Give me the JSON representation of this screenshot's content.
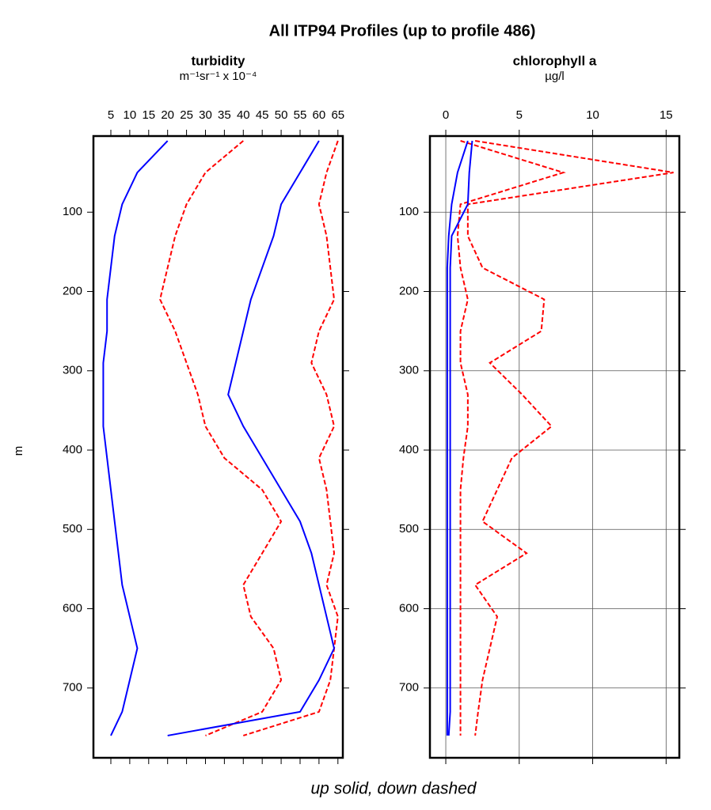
{
  "title": "All ITP94 Profiles (up to profile 486)",
  "ylabel": "m",
  "footer": "up solid, down dashed",
  "chart_data": [
    {
      "type": "line",
      "title": "turbidity",
      "subtitle": "m⁻¹sr⁻¹ x 10⁻⁴",
      "xlim": [
        0.4,
        66.3
      ],
      "xticks": [
        5,
        10,
        15,
        20,
        25,
        30,
        35,
        40,
        45,
        50,
        55,
        60,
        65
      ],
      "ylim": [
        788,
        4
      ],
      "yticks": [
        100,
        200,
        300,
        400,
        500,
        600,
        700
      ],
      "grid": false,
      "y": [
        10,
        50,
        90,
        130,
        170,
        210,
        250,
        290,
        330,
        370,
        410,
        450,
        490,
        530,
        570,
        610,
        650,
        690,
        730,
        760
      ],
      "series": [
        {
          "color": "#ff0000",
          "dash": true,
          "values": [
            65,
            62,
            60,
            62,
            63,
            64,
            60,
            58,
            62,
            64,
            60,
            62,
            63,
            64,
            62,
            65,
            64,
            63,
            60,
            40
          ]
        },
        {
          "color": "#ff0000",
          "dash": true,
          "values": [
            40,
            30,
            25,
            22,
            20,
            18,
            22,
            25,
            28,
            30,
            35,
            45,
            50,
            45,
            40,
            42,
            48,
            50,
            45,
            30
          ]
        },
        {
          "color": "#0000ff",
          "dash": false,
          "values": [
            60,
            55,
            50,
            48,
            45,
            42,
            40,
            38,
            36,
            40,
            45,
            50,
            55,
            58,
            60,
            62,
            64,
            60,
            55,
            20
          ]
        },
        {
          "color": "#0000ff",
          "dash": false,
          "values": [
            20,
            12,
            8,
            6,
            5,
            4,
            4,
            3,
            3,
            3,
            4,
            5,
            6,
            7,
            8,
            10,
            12,
            10,
            8,
            5
          ]
        }
      ]
    },
    {
      "type": "line",
      "title": "chlorophyll a",
      "subtitle": "µg/l",
      "xlim": [
        -1.08,
        15.9
      ],
      "xticks": [
        0,
        5,
        10,
        15
      ],
      "ylim": [
        788,
        4
      ],
      "yticks": [
        100,
        200,
        300,
        400,
        500,
        600,
        700
      ],
      "grid": true,
      "y": [
        10,
        50,
        90,
        130,
        170,
        210,
        250,
        290,
        330,
        370,
        410,
        450,
        490,
        530,
        570,
        610,
        650,
        690,
        730,
        760
      ],
      "series": [
        {
          "color": "#ff0000",
          "dash": true,
          "values": [
            2,
            15.5,
            1.5,
            1.5,
            2.5,
            6.7,
            6.5,
            3,
            5.2,
            7.2,
            4.5,
            3.5,
            2.5,
            5.5,
            2,
            3.5,
            3,
            2.5,
            2.2,
            2
          ]
        },
        {
          "color": "#ff0000",
          "dash": true,
          "values": [
            1,
            8,
            1,
            0.8,
            1,
            1.5,
            1,
            1,
            1.5,
            1.5,
            1.2,
            1,
            1,
            1,
            1,
            1,
            1,
            1,
            1,
            1
          ]
        },
        {
          "color": "#0000ff",
          "dash": false,
          "values": [
            1.8,
            1.6,
            1.5,
            0.4,
            0.3,
            0.3,
            0.3,
            0.3,
            0.3,
            0.3,
            0.3,
            0.3,
            0.3,
            0.3,
            0.3,
            0.3,
            0.3,
            0.3,
            0.3,
            0.2
          ]
        },
        {
          "color": "#0000ff",
          "dash": false,
          "values": [
            1.5,
            0.8,
            0.4,
            0.2,
            0.1,
            0.1,
            0.1,
            0.1,
            0.1,
            0.1,
            0.1,
            0.1,
            0.1,
            0.1,
            0.1,
            0.1,
            0.1,
            0.1,
            0.1,
            0.1
          ]
        }
      ]
    }
  ]
}
